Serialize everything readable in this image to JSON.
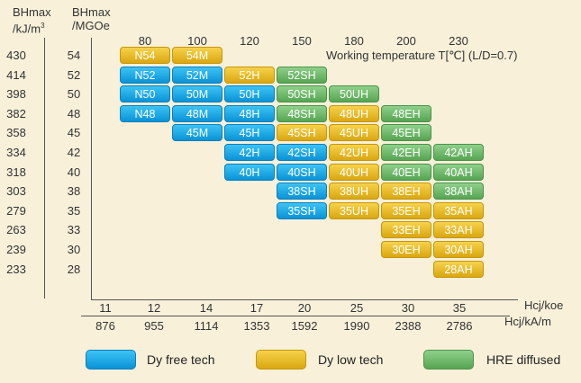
{
  "headers": {
    "bh_kj": "BHmax",
    "bh_kj_unit": "/kJ/m",
    "bh_kj_sup": "3",
    "bh_mgoe": "BHmax",
    "bh_mgoe_unit": "/MGOe"
  },
  "axis_titles": {
    "temperature": "Working temperature T[℃] (L/D=0.7)",
    "hcj_koe": "Hcj/koe",
    "hcj_kam": "Hcj/kA/m"
  },
  "temperatures": [
    "80",
    "100",
    "120",
    "150",
    "180",
    "200",
    "230"
  ],
  "hcj_koe": [
    "11",
    "12",
    "14",
    "17",
    "20",
    "25",
    "30",
    "35"
  ],
  "hcj_kam": [
    "876",
    "955",
    "1114",
    "1353",
    "1592",
    "1990",
    "2388",
    "2786"
  ],
  "bh_kj_values": [
    "430",
    "414",
    "398",
    "382",
    "358",
    "334",
    "318",
    "303",
    "279",
    "263",
    "239",
    "233"
  ],
  "bh_mgoe_values": [
    "54",
    "52",
    "50",
    "48",
    "45",
    "42",
    "40",
    "38",
    "35",
    "33",
    "30",
    "28"
  ],
  "colors": {
    "dy_free": "#1aa7e6",
    "dy_low": "#e8bc2a",
    "hre": "#6dba68",
    "background": "#f8f0d9"
  },
  "legend": [
    {
      "label": "Dy free tech",
      "color_key": "dy_free"
    },
    {
      "label": "Dy low tech",
      "color_key": "dy_low"
    },
    {
      "label": "HRE diffused",
      "color_key": "hre"
    }
  ],
  "chart_data": {
    "type": "table",
    "columns_temperature": [
      "80",
      "100",
      "120",
      "150",
      "180",
      "200",
      "230"
    ],
    "rows_bhmax_mgoe": [
      "54",
      "52",
      "50",
      "48",
      "45",
      "42",
      "40",
      "38",
      "35",
      "33",
      "30",
      "28"
    ],
    "cells": [
      {
        "label": "N54",
        "row": 0,
        "col": 0,
        "tech": "dy_low"
      },
      {
        "label": "54M",
        "row": 0,
        "col": 1,
        "tech": "dy_low"
      },
      {
        "label": "N52",
        "row": 1,
        "col": 0,
        "tech": "dy_free"
      },
      {
        "label": "52M",
        "row": 1,
        "col": 1,
        "tech": "dy_free"
      },
      {
        "label": "52H",
        "row": 1,
        "col": 2,
        "tech": "dy_low"
      },
      {
        "label": "52SH",
        "row": 1,
        "col": 3,
        "tech": "hre"
      },
      {
        "label": "N50",
        "row": 2,
        "col": 0,
        "tech": "dy_free"
      },
      {
        "label": "50M",
        "row": 2,
        "col": 1,
        "tech": "dy_free"
      },
      {
        "label": "50H",
        "row": 2,
        "col": 2,
        "tech": "dy_free"
      },
      {
        "label": "50SH",
        "row": 2,
        "col": 3,
        "tech": "hre"
      },
      {
        "label": "50UH",
        "row": 2,
        "col": 4,
        "tech": "hre"
      },
      {
        "label": "N48",
        "row": 3,
        "col": 0,
        "tech": "dy_free"
      },
      {
        "label": "48M",
        "row": 3,
        "col": 1,
        "tech": "dy_free"
      },
      {
        "label": "48H",
        "row": 3,
        "col": 2,
        "tech": "dy_free"
      },
      {
        "label": "48SH",
        "row": 3,
        "col": 3,
        "tech": "hre"
      },
      {
        "label": "48UH",
        "row": 3,
        "col": 4,
        "tech": "dy_low"
      },
      {
        "label": "48EH",
        "row": 3,
        "col": 5,
        "tech": "hre"
      },
      {
        "label": "45M",
        "row": 4,
        "col": 1,
        "tech": "dy_free"
      },
      {
        "label": "45H",
        "row": 4,
        "col": 2,
        "tech": "dy_free"
      },
      {
        "label": "45SH",
        "row": 4,
        "col": 3,
        "tech": "dy_low"
      },
      {
        "label": "45UH",
        "row": 4,
        "col": 4,
        "tech": "dy_low"
      },
      {
        "label": "45EH",
        "row": 4,
        "col": 5,
        "tech": "hre"
      },
      {
        "label": "42H",
        "row": 5,
        "col": 2,
        "tech": "dy_free"
      },
      {
        "label": "42SH",
        "row": 5,
        "col": 3,
        "tech": "dy_free"
      },
      {
        "label": "42UH",
        "row": 5,
        "col": 4,
        "tech": "dy_low"
      },
      {
        "label": "42EH",
        "row": 5,
        "col": 5,
        "tech": "hre"
      },
      {
        "label": "42AH",
        "row": 5,
        "col": 6,
        "tech": "hre"
      },
      {
        "label": "40H",
        "row": 6,
        "col": 2,
        "tech": "dy_free"
      },
      {
        "label": "40SH",
        "row": 6,
        "col": 3,
        "tech": "dy_free"
      },
      {
        "label": "40UH",
        "row": 6,
        "col": 4,
        "tech": "dy_low"
      },
      {
        "label": "40EH",
        "row": 6,
        "col": 5,
        "tech": "hre"
      },
      {
        "label": "40AH",
        "row": 6,
        "col": 6,
        "tech": "hre"
      },
      {
        "label": "38SH",
        "row": 7,
        "col": 3,
        "tech": "dy_free"
      },
      {
        "label": "38UH",
        "row": 7,
        "col": 4,
        "tech": "dy_low"
      },
      {
        "label": "38EH",
        "row": 7,
        "col": 5,
        "tech": "dy_low"
      },
      {
        "label": "38AH",
        "row": 7,
        "col": 6,
        "tech": "hre"
      },
      {
        "label": "35SH",
        "row": 8,
        "col": 3,
        "tech": "dy_free"
      },
      {
        "label": "35UH",
        "row": 8,
        "col": 4,
        "tech": "dy_low"
      },
      {
        "label": "35EH",
        "row": 8,
        "col": 5,
        "tech": "dy_low"
      },
      {
        "label": "35AH",
        "row": 8,
        "col": 6,
        "tech": "dy_low"
      },
      {
        "label": "33EH",
        "row": 9,
        "col": 5,
        "tech": "dy_low"
      },
      {
        "label": "33AH",
        "row": 9,
        "col": 6,
        "tech": "dy_low"
      },
      {
        "label": "30EH",
        "row": 10,
        "col": 5,
        "tech": "dy_low"
      },
      {
        "label": "30AH",
        "row": 10,
        "col": 6,
        "tech": "dy_low"
      },
      {
        "label": "28AH",
        "row": 11,
        "col": 6,
        "tech": "dy_low"
      }
    ]
  }
}
